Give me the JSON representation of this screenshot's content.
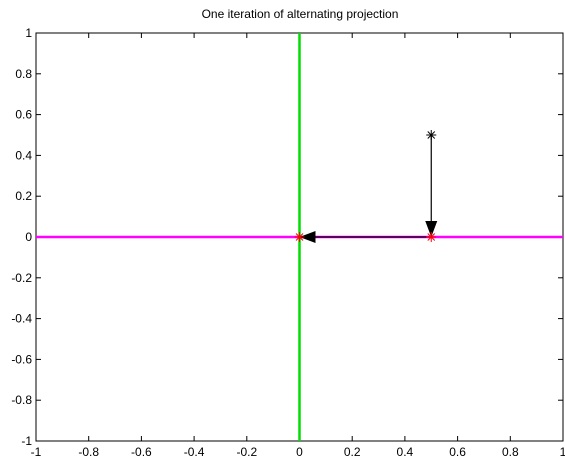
{
  "chart_data": {
    "type": "line",
    "title": "One iteration of alternating projection",
    "xlabel": "",
    "ylabel": "",
    "xlim": [
      -1,
      1
    ],
    "ylim": [
      -1,
      1
    ],
    "x_ticks": [
      -1,
      -0.8,
      -0.6,
      -0.4,
      -0.2,
      0,
      0.2,
      0.4,
      0.6,
      0.8,
      1
    ],
    "y_ticks": [
      -1,
      -0.8,
      -0.6,
      -0.4,
      -0.2,
      0,
      0.2,
      0.4,
      0.6,
      0.8,
      1
    ],
    "x_tick_labels": [
      "-1",
      "-0.8",
      "-0.6",
      "-0.4",
      "-0.2",
      "0",
      "0.2",
      "0.4",
      "0.6",
      "0.8",
      "1"
    ],
    "y_tick_labels": [
      "-1",
      "-0.8",
      "-0.6",
      "-0.4",
      "-0.2",
      "0",
      "0.2",
      "0.4",
      "0.6",
      "0.8",
      "1"
    ],
    "grid": false,
    "lines": [
      {
        "x": [
          0,
          0
        ],
        "y": [
          -1,
          1
        ],
        "color": "#00dd00"
      },
      {
        "x": [
          -1,
          1
        ],
        "y": [
          0,
          0
        ],
        "color": "#ff00ff"
      }
    ],
    "points": [
      {
        "x": 0.5,
        "y": 0.5,
        "color": "#000000",
        "marker": "asterisk"
      },
      {
        "x": 0.5,
        "y": 0,
        "color": "#ff0000",
        "marker": "asterisk"
      },
      {
        "x": 0,
        "y": 0,
        "color": "#ff0000",
        "marker": "asterisk"
      }
    ],
    "arrows": [
      {
        "from": [
          0.5,
          0.5
        ],
        "to": [
          0.5,
          0
        ],
        "color": "#000000"
      },
      {
        "from": [
          0.5,
          0
        ],
        "to": [
          0,
          0
        ],
        "color": "#000000"
      }
    ]
  }
}
